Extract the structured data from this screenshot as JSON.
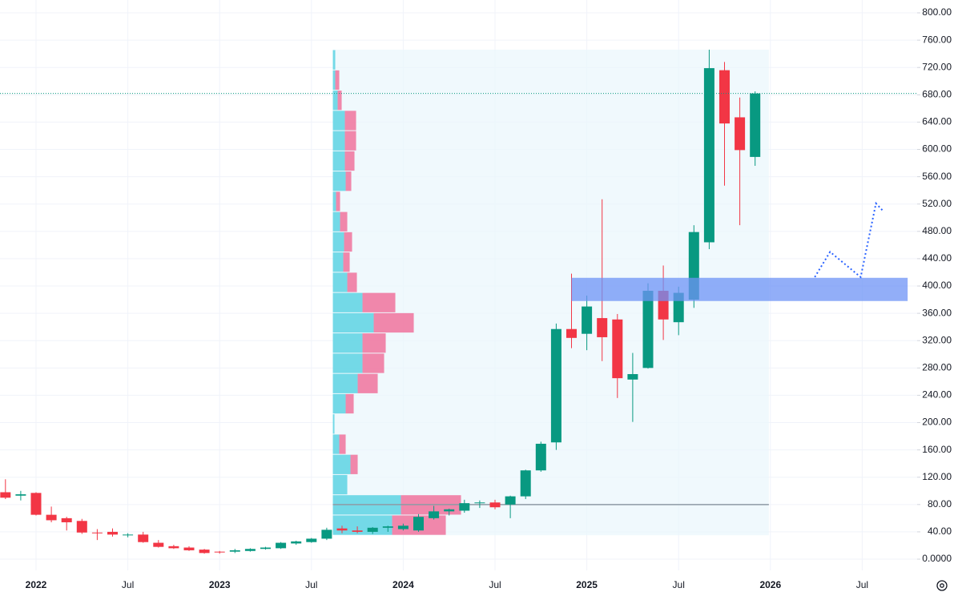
{
  "chart_data": {
    "type": "candlestick",
    "categories": [
      null,
      null,
      "2022",
      null,
      null,
      null,
      null,
      null,
      "Jul",
      null,
      null,
      null,
      null,
      null,
      "2023",
      null,
      null,
      null,
      null,
      null,
      "Jul",
      null,
      null,
      null,
      null,
      null,
      "2024",
      null,
      null,
      null,
      null,
      null,
      "Jul",
      null,
      null,
      null,
      null,
      null,
      "2025",
      null,
      null,
      null,
      null,
      null,
      "Jul",
      null,
      null,
      null,
      null,
      null,
      "2026",
      null,
      null,
      null,
      null,
      null,
      "Jul",
      null,
      null
    ],
    "series": {
      "up_color": "#089981",
      "down_color": "#f23645",
      "open": [
        98,
        93,
        97,
        65,
        60,
        56,
        39,
        40,
        36,
        36,
        24,
        19,
        17,
        14,
        11,
        11,
        12,
        15,
        16,
        23,
        25,
        30,
        45,
        42,
        40,
        46,
        44,
        42,
        60,
        70,
        71,
        82,
        83,
        80,
        92,
        130,
        171,
        337,
        330,
        353,
        351,
        263,
        280,
        393,
        347,
        380,
        464,
        716,
        647,
        589,
        null,
        null,
        null,
        null,
        null,
        null,
        null,
        null,
        null
      ],
      "high": [
        117,
        100,
        98,
        77,
        62,
        59,
        44,
        45,
        38,
        40,
        28,
        21,
        19,
        15,
        12,
        15,
        16,
        18,
        25,
        27,
        31,
        46,
        49,
        48,
        47,
        49,
        52,
        66,
        78,
        74,
        87,
        86,
        87,
        93,
        131,
        172,
        345,
        418,
        386,
        527,
        359,
        302,
        404,
        430,
        399,
        489,
        746,
        728,
        676,
        685,
        null,
        null,
        null,
        null,
        null,
        null,
        null,
        null,
        null
      ],
      "low": [
        88,
        86,
        64,
        54,
        42,
        37,
        28,
        33,
        32,
        24,
        17,
        15,
        12,
        8,
        8,
        9,
        11,
        14,
        15,
        21,
        24,
        28,
        38,
        38,
        37,
        40,
        42,
        40,
        58,
        64,
        68,
        75,
        73,
        60,
        88,
        128,
        160,
        309,
        306,
        290,
        236,
        201,
        279,
        321,
        328,
        368,
        454,
        547,
        489,
        576,
        null,
        null,
        null,
        null,
        null,
        null,
        null,
        null,
        null
      ],
      "close": [
        90,
        95,
        65,
        57,
        54,
        39,
        38,
        36,
        36,
        25,
        18,
        16,
        13,
        9,
        10,
        13,
        15,
        17,
        24,
        26,
        30,
        43,
        42,
        40,
        46,
        48,
        49,
        62,
        70,
        73,
        82,
        83,
        76,
        92,
        130,
        169,
        337,
        324,
        370,
        325,
        265,
        271,
        393,
        351,
        390,
        479,
        719,
        638,
        599,
        682,
        null,
        null,
        null,
        null,
        null,
        null,
        null,
        null,
        null
      ]
    },
    "ylim": [
      -16.4,
      818.8
    ],
    "yticks": [
      {
        "value": 0,
        "label": "0.0000"
      },
      {
        "value": 40,
        "label": "40.00"
      },
      {
        "value": 80,
        "label": "80.00"
      },
      {
        "value": 120,
        "label": "120.00"
      },
      {
        "value": 160,
        "label": "160.00"
      },
      {
        "value": 200,
        "label": "200.00"
      },
      {
        "value": 240,
        "label": "240.00"
      },
      {
        "value": 280,
        "label": "280.00"
      },
      {
        "value": 320,
        "label": "320.00"
      },
      {
        "value": 360,
        "label": "360.00"
      },
      {
        "value": 400,
        "label": "400.00"
      },
      {
        "value": 440,
        "label": "440.00"
      },
      {
        "value": 480,
        "label": "480.00"
      },
      {
        "value": 520,
        "label": "520.00"
      },
      {
        "value": 560,
        "label": "560.00"
      },
      {
        "value": 600,
        "label": "600.00"
      },
      {
        "value": 640,
        "label": "640.00"
      },
      {
        "value": 680,
        "label": "680.00"
      },
      {
        "value": 720,
        "label": "720.00"
      },
      {
        "value": 760,
        "label": "760.00"
      },
      {
        "value": 800,
        "label": "800.00"
      }
    ],
    "grid": true,
    "volume_profile": {
      "x": [
        21.4,
        49.9
      ],
      "range": [
        35,
        746
      ],
      "poc": 80,
      "up_color": "#5dd3e3",
      "down_color": "#f06a96",
      "up": [
        74,
        85,
        18,
        22,
        8,
        2,
        16,
        31,
        37,
        37,
        51,
        37,
        18,
        13,
        14,
        9,
        4,
        16,
        15,
        15,
        15,
        6,
        3,
        3
      ],
      "down": [
        67,
        75,
        0,
        9,
        8,
        0,
        10,
        25,
        27,
        29,
        50,
        41,
        12,
        8,
        10,
        9,
        5,
        7,
        12,
        14,
        14,
        5,
        5,
        0
      ]
    },
    "zone": {
      "x": [
        37,
        58.97
      ],
      "y": [
        378,
        412
      ],
      "color": "#6e93f5"
    },
    "projection": {
      "x": [
        52.9,
        53.9,
        55.9,
        56.9,
        57.4
      ],
      "y": [
        413,
        450,
        413,
        521,
        509
      ],
      "color": "#2962ff"
    }
  }
}
